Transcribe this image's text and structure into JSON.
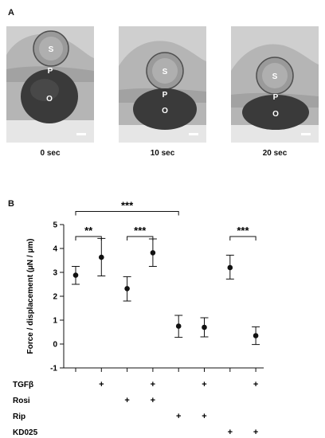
{
  "panel_a": {
    "letter": "A",
    "images": [
      {
        "time": "0 sec",
        "labels": {
          "s": "S",
          "p": "P",
          "o": "O"
        }
      },
      {
        "time": "10 sec",
        "labels": {
          "s": "S",
          "p": "P",
          "o": "O"
        }
      },
      {
        "time": "20 sec",
        "labels": {
          "s": "S",
          "p": "P",
          "o": "O"
        }
      }
    ]
  },
  "panel_b": {
    "letter": "B"
  },
  "chart_data": {
    "type": "scatter",
    "ylabel": "Force / displacement (µN / µm)",
    "ylim": [
      -1,
      5
    ],
    "yticks": [
      "-1",
      "0",
      "1",
      "2",
      "3",
      "4",
      "5"
    ],
    "groups": [
      {
        "mean": 2.88,
        "lower": 2.5,
        "upper": 3.25
      },
      {
        "mean": 3.63,
        "lower": 2.85,
        "upper": 4.42
      },
      {
        "mean": 2.32,
        "lower": 1.8,
        "upper": 2.82
      },
      {
        "mean": 3.82,
        "lower": 3.25,
        "upper": 4.4
      },
      {
        "mean": 0.75,
        "lower": 0.28,
        "upper": 1.2
      },
      {
        "mean": 0.7,
        "lower": 0.3,
        "upper": 1.1
      },
      {
        "mean": 3.2,
        "lower": 2.72,
        "upper": 3.72
      },
      {
        "mean": 0.35,
        "lower": -0.02,
        "upper": 0.72
      }
    ],
    "treatments": [
      {
        "label": "TGFβ",
        "marks": [
          "",
          "+",
          "",
          "+",
          "",
          "+",
          "",
          "+"
        ]
      },
      {
        "label": "Rosi",
        "marks": [
          "",
          "",
          "+",
          "+",
          "",
          "",
          "",
          ""
        ]
      },
      {
        "label": "Rip",
        "marks": [
          "",
          "",
          "",
          "",
          "+",
          "+",
          "",
          ""
        ]
      },
      {
        "label": "KD025",
        "marks": [
          "",
          "",
          "",
          "",
          "",
          "",
          "+",
          "+"
        ]
      }
    ],
    "significance": [
      {
        "from": 1,
        "to": 2,
        "label": "**",
        "y": 4.5
      },
      {
        "from": 3,
        "to": 4,
        "label": "***",
        "y": 4.5
      },
      {
        "from": 1,
        "to": 5,
        "label": "***",
        "y": 5.55
      },
      {
        "from": 7,
        "to": 8,
        "label": "***",
        "y": 4.5
      }
    ]
  }
}
